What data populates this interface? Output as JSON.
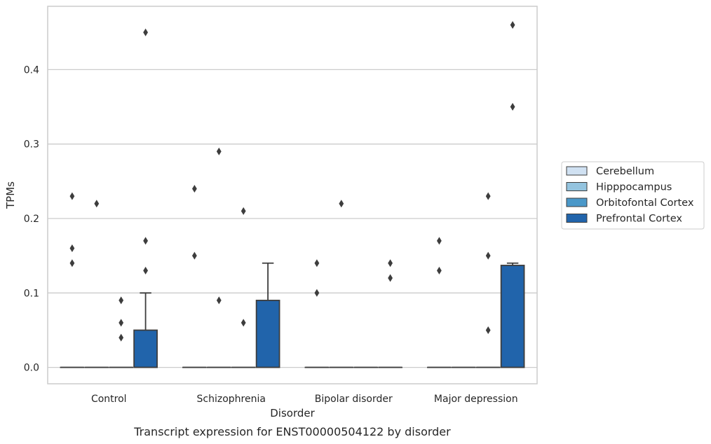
{
  "caption": "Transcript expression for ENST00000504122 by disorder",
  "chart_data": {
    "type": "box",
    "xlabel": "Disorder",
    "ylabel": "TPMs",
    "categories": [
      "Control",
      "Schizophrenia",
      "Bipolar disorder",
      "Major depression"
    ],
    "ylim": [
      -0.022,
      0.485
    ],
    "yticks": [
      0.0,
      0.1,
      0.2,
      0.3,
      0.4
    ],
    "ytick_labels": [
      "0.0",
      "0.1",
      "0.2",
      "0.3",
      "0.4"
    ],
    "grid": "horizontal",
    "legend_position": "right",
    "series": [
      {
        "name": "Cerebellum",
        "color": "#d0e1f2",
        "boxes": [
          {
            "q1": 0,
            "median": 0,
            "q3": 0,
            "whisker_low": 0,
            "whisker_high": 0,
            "outliers": [
              0.16,
              0.14,
              0.23
            ]
          },
          {
            "q1": 0,
            "median": 0,
            "q3": 0,
            "whisker_low": 0,
            "whisker_high": 0,
            "outliers": [
              0.24,
              0.15
            ]
          },
          {
            "q1": 0,
            "median": 0,
            "q3": 0,
            "whisker_low": 0,
            "whisker_high": 0,
            "outliers": [
              0.14,
              0.1
            ]
          },
          {
            "q1": 0,
            "median": 0,
            "q3": 0,
            "whisker_low": 0,
            "whisker_high": 0,
            "outliers": [
              0.17,
              0.13
            ]
          }
        ]
      },
      {
        "name": "Hipppocampus",
        "color": "#94c4df",
        "boxes": [
          {
            "q1": 0,
            "median": 0,
            "q3": 0,
            "whisker_low": 0,
            "whisker_high": 0,
            "outliers": [
              0.22
            ]
          },
          {
            "q1": 0,
            "median": 0,
            "q3": 0,
            "whisker_low": 0,
            "whisker_high": 0,
            "outliers": [
              0.29,
              0.09
            ]
          },
          {
            "q1": 0,
            "median": 0,
            "q3": 0,
            "whisker_low": 0,
            "whisker_high": 0,
            "outliers": [
              0.22
            ]
          },
          {
            "q1": 0,
            "median": 0,
            "q3": 0,
            "whisker_low": 0,
            "whisker_high": 0,
            "outliers": []
          }
        ]
      },
      {
        "name": "Orbitofontal Cortex",
        "color": "#4a98c9",
        "boxes": [
          {
            "q1": 0,
            "median": 0,
            "q3": 0,
            "whisker_low": 0,
            "whisker_high": 0,
            "outliers": [
              0.09,
              0.06,
              0.04
            ]
          },
          {
            "q1": 0,
            "median": 0,
            "q3": 0,
            "whisker_low": 0,
            "whisker_high": 0,
            "outliers": [
              0.21,
              0.06
            ]
          },
          {
            "q1": 0,
            "median": 0,
            "q3": 0,
            "whisker_low": 0,
            "whisker_high": 0,
            "outliers": []
          },
          {
            "q1": 0,
            "median": 0,
            "q3": 0,
            "whisker_low": 0,
            "whisker_high": 0,
            "outliers": [
              0.23,
              0.15,
              0.05
            ]
          }
        ]
      },
      {
        "name": "Prefrontal Cortex",
        "color": "#2164ab",
        "boxes": [
          {
            "q1": 0,
            "median": 0,
            "q3": 0.05,
            "whisker_low": 0,
            "whisker_high": 0.1,
            "outliers": [
              0.45,
              0.17,
              0.13
            ]
          },
          {
            "q1": 0,
            "median": 0,
            "q3": 0.09,
            "whisker_low": 0,
            "whisker_high": 0.14,
            "outliers": []
          },
          {
            "q1": 0,
            "median": 0,
            "q3": 0,
            "whisker_low": 0,
            "whisker_high": 0,
            "outliers": [
              0.14,
              0.12
            ]
          },
          {
            "q1": 0,
            "median": 0,
            "q3": 0.137,
            "whisker_low": 0,
            "whisker_high": 0.14,
            "outliers": [
              0.46,
              0.35
            ]
          }
        ]
      }
    ]
  }
}
